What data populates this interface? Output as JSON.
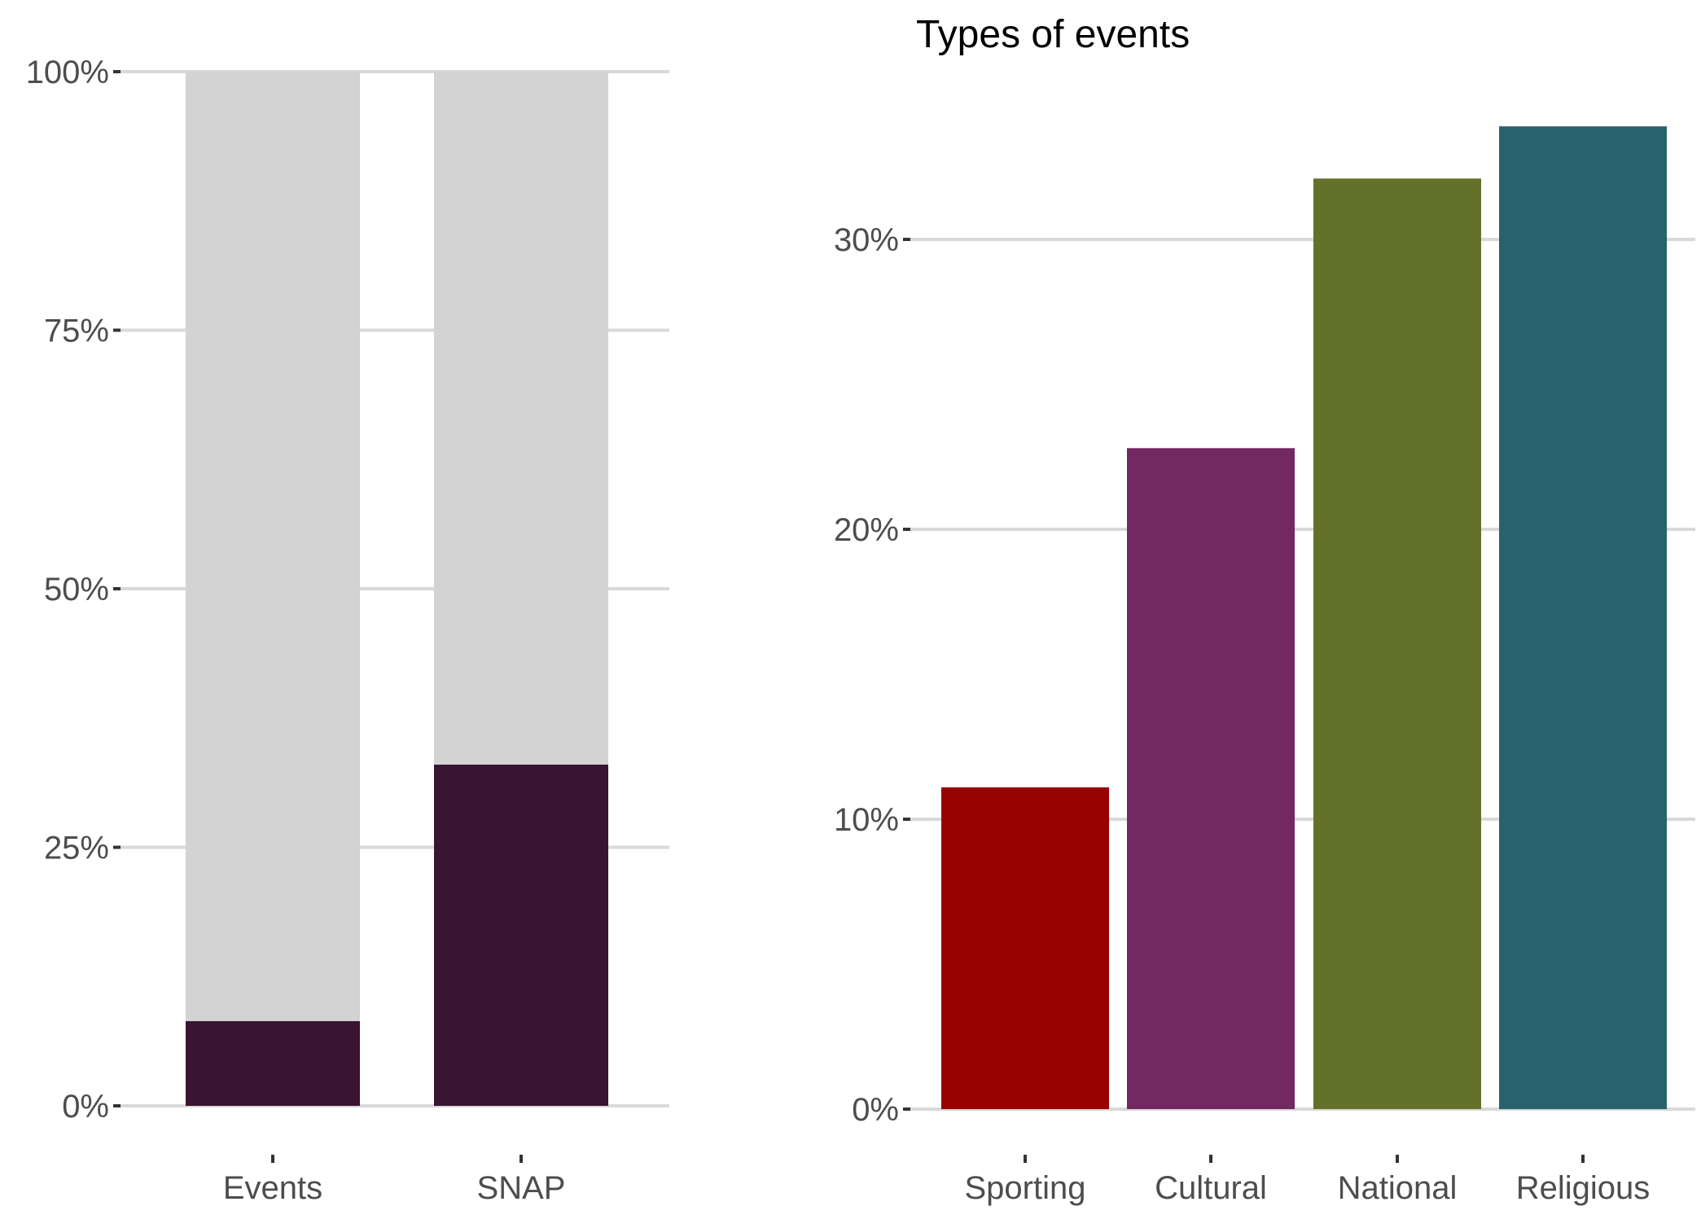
{
  "colors": {
    "background": "#ffffff",
    "gridline": "#d9d9d9",
    "axis_tick": "#333333",
    "tick_label": "#4d4d4d",
    "remainder_fill": "#d3d3d3",
    "share_fill": "#3a1532"
  },
  "chart_data": [
    {
      "type": "bar",
      "stacked": true,
      "title": "",
      "xlabel": "",
      "ylabel": "",
      "categories": [
        "Events",
        "SNAP"
      ],
      "ylim": [
        0,
        1
      ],
      "yticks": [
        0,
        0.25,
        0.5,
        0.75,
        1.0
      ],
      "ytick_labels": [
        "0%",
        "25%",
        "50%",
        "75%",
        "100%"
      ],
      "grid": "horizontal",
      "series": [
        {
          "values": [
            0.082,
            0.33
          ],
          "color": "#3a1532"
        },
        {
          "values": [
            0.918,
            0.67
          ],
          "color": "#d3d3d3"
        }
      ]
    },
    {
      "type": "bar",
      "title": "Types of events",
      "xlabel": "",
      "ylabel": "",
      "categories": [
        "Sporting",
        "Cultural",
        "National",
        "Religious"
      ],
      "values": [
        0.111,
        0.228,
        0.321,
        0.339
      ],
      "colors": [
        "#990000",
        "#722860",
        "#64712a",
        "#29626c"
      ],
      "ylim": [
        0,
        0.35
      ],
      "yticks": [
        0,
        0.1,
        0.2,
        0.3
      ],
      "ytick_labels": [
        "0%",
        "10%",
        "20%",
        "30%"
      ],
      "grid": "horizontal"
    }
  ]
}
